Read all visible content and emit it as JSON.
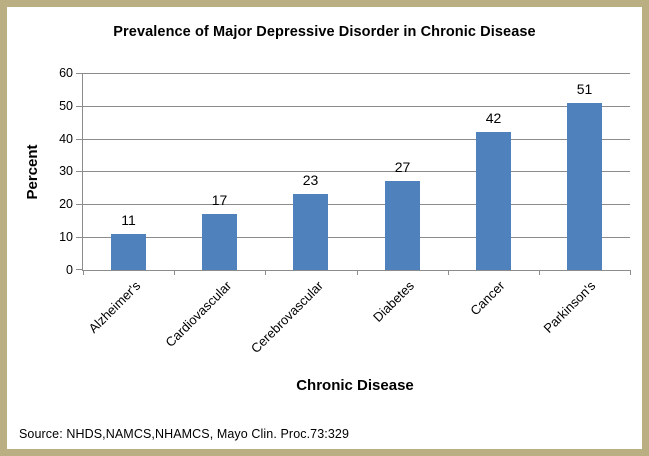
{
  "frame": {
    "border_color": "#b9af82",
    "background_color": "#ffffff"
  },
  "chart_data": {
    "type": "bar",
    "title": "Prevalence of Major Depressive Disorder in Chronic Disease",
    "categories": [
      "Alzheimer's",
      "Cardiovascular",
      "Cerebrovascular",
      "Diabetes",
      "Cancer",
      "Parkinson's"
    ],
    "values": [
      11,
      17,
      23,
      27,
      42,
      51
    ],
    "xlabel": "Chronic Disease",
    "ylabel": "Percent",
    "ylim": [
      0,
      60
    ],
    "ytick_step": 10,
    "yticks": [
      0,
      10,
      20,
      30,
      40,
      50,
      60
    ],
    "bar_color": "#4f81bd",
    "gridline_color": "#8c8c8c",
    "grid": true,
    "legend_position": "none",
    "value_labels": true,
    "category_label_rotation_deg": 45
  },
  "source_note": "Source: NHDS,NAMCS,NHAMCS, Mayo Clin. Proc.73:329"
}
